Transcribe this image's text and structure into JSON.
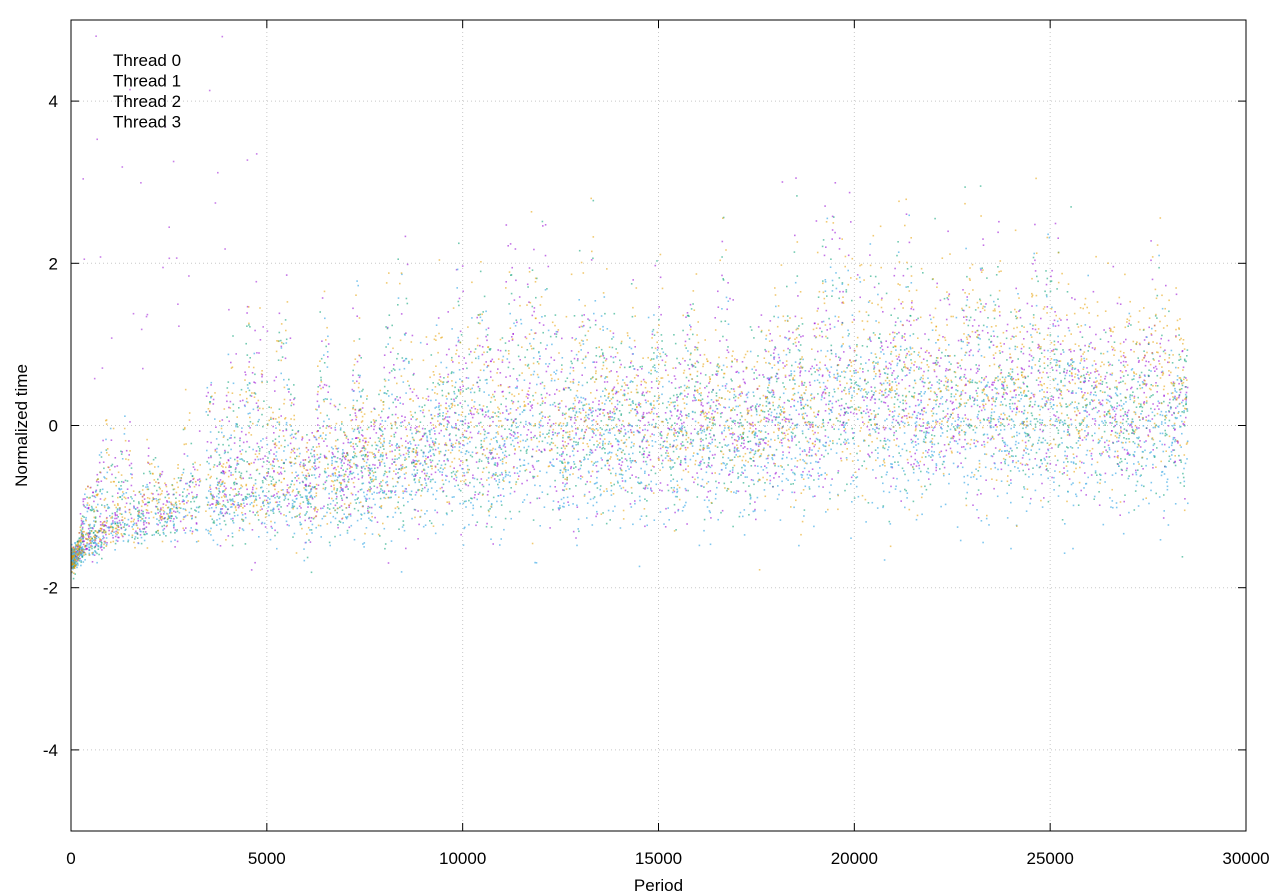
{
  "chart_data": {
    "type": "scatter",
    "title": "",
    "xlabel": "Period",
    "ylabel": "Normalized time",
    "xlim": [
      0,
      30000
    ],
    "ylim": [
      -5,
      5
    ],
    "x_ticks": [
      0,
      5000,
      10000,
      15000,
      20000,
      25000,
      30000
    ],
    "x_tick_labels": [
      "0",
      "5000",
      "10000",
      "15000",
      "20000",
      "25000",
      "30000"
    ],
    "y_ticks": [
      -4,
      -2,
      0,
      2,
      4
    ],
    "y_tick_labels": [
      "-4",
      "-2",
      "0",
      "2",
      "4"
    ],
    "grid": true,
    "legend_position": "top-left",
    "marker": "dot",
    "series": [
      {
        "name": "Thread 0",
        "color": "#9400d3",
        "x_range": [
          0,
          28500
        ],
        "trend": [
          [
            0,
            -1.65
          ],
          [
            500,
            -1.4
          ],
          [
            1000,
            -1.25
          ],
          [
            2000,
            -1.1
          ],
          [
            3000,
            -0.95
          ],
          [
            4000,
            -0.85
          ],
          [
            5000,
            -0.75
          ],
          [
            7500,
            -0.5
          ],
          [
            10000,
            -0.3
          ],
          [
            12500,
            -0.2
          ],
          [
            15000,
            -0.05
          ],
          [
            17500,
            0.0
          ],
          [
            20000,
            0.1
          ],
          [
            22500,
            0.15
          ],
          [
            25000,
            0.2
          ],
          [
            28500,
            0.25
          ]
        ],
        "spread": [
          [
            0,
            0.15
          ],
          [
            2000,
            0.4
          ],
          [
            5000,
            0.7
          ],
          [
            10000,
            0.95
          ],
          [
            20000,
            1.15
          ],
          [
            28500,
            1.2
          ]
        ]
      },
      {
        "name": "Thread 1",
        "color": "#009e73",
        "x_range": [
          0,
          28500
        ],
        "trend": [
          [
            0,
            -1.65
          ],
          [
            500,
            -1.45
          ],
          [
            1000,
            -1.3
          ],
          [
            2000,
            -1.15
          ],
          [
            3000,
            -1.0
          ],
          [
            4000,
            -0.9
          ],
          [
            5000,
            -0.8
          ],
          [
            7500,
            -0.55
          ],
          [
            10000,
            -0.35
          ],
          [
            12500,
            -0.25
          ],
          [
            15000,
            -0.1
          ],
          [
            17500,
            -0.05
          ],
          [
            20000,
            0.05
          ],
          [
            22500,
            0.1
          ],
          [
            25000,
            0.15
          ],
          [
            28500,
            0.2
          ]
        ],
        "spread": [
          [
            0,
            0.15
          ],
          [
            2000,
            0.4
          ],
          [
            5000,
            0.7
          ],
          [
            10000,
            0.95
          ],
          [
            20000,
            1.1
          ],
          [
            28500,
            1.15
          ]
        ]
      },
      {
        "name": "Thread 2",
        "color": "#56b4e9",
        "x_range": [
          0,
          28500
        ],
        "trend": [
          [
            0,
            -1.65
          ],
          [
            500,
            -1.5
          ],
          [
            1000,
            -1.35
          ],
          [
            2000,
            -1.2
          ],
          [
            3000,
            -1.1
          ],
          [
            4000,
            -1.0
          ],
          [
            5000,
            -0.95
          ],
          [
            7500,
            -0.75
          ],
          [
            10000,
            -0.6
          ],
          [
            12500,
            -0.5
          ],
          [
            15000,
            -0.4
          ],
          [
            17500,
            -0.35
          ],
          [
            20000,
            -0.3
          ],
          [
            22500,
            -0.25
          ],
          [
            25000,
            -0.2
          ],
          [
            28500,
            -0.15
          ]
        ],
        "spread": [
          [
            0,
            0.15
          ],
          [
            2000,
            0.35
          ],
          [
            5000,
            0.6
          ],
          [
            10000,
            0.9
          ],
          [
            20000,
            1.05
          ],
          [
            28500,
            1.1
          ]
        ]
      },
      {
        "name": "Thread 3",
        "color": "#e69f00",
        "x_range": [
          0,
          28500
        ],
        "trend": [
          [
            0,
            -1.65
          ],
          [
            500,
            -1.4
          ],
          [
            1000,
            -1.25
          ],
          [
            2000,
            -1.05
          ],
          [
            3000,
            -0.95
          ],
          [
            4000,
            -0.85
          ],
          [
            5000,
            -0.75
          ],
          [
            7500,
            -0.45
          ],
          [
            10000,
            -0.25
          ],
          [
            12500,
            -0.1
          ],
          [
            15000,
            0.05
          ],
          [
            17500,
            0.1
          ],
          [
            20000,
            0.2
          ],
          [
            22500,
            0.25
          ],
          [
            25000,
            0.3
          ],
          [
            28500,
            0.45
          ]
        ],
        "spread": [
          [
            0,
            0.15
          ],
          [
            2000,
            0.4
          ],
          [
            5000,
            0.7
          ],
          [
            10000,
            0.95
          ],
          [
            20000,
            1.2
          ],
          [
            28500,
            1.25
          ]
        ]
      }
    ]
  }
}
